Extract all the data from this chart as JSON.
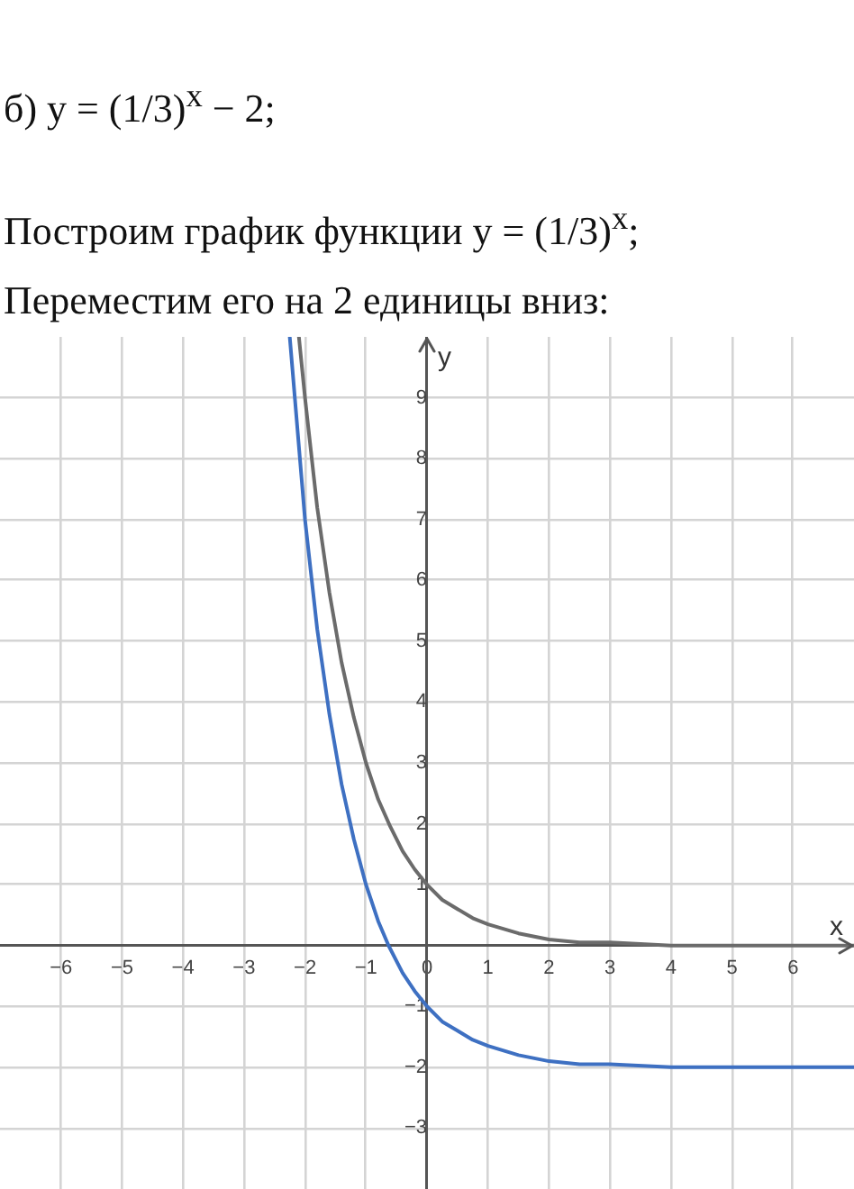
{
  "chart_data": {
    "type": "line",
    "title": "б) y = (1/3)$^{x}$ − 2;",
    "subtitle": "Построим график функции y = (1/3)$^{x}$;",
    "annotations": [
      "Переместим его на 2 единицы вниз:"
    ],
    "xlabel": "x",
    "ylabel": "y",
    "xlim": [
      -7,
      7
    ],
    "ylim": [
      -4,
      10
    ],
    "xticks": [
      {
        "value": -6,
        "label": "−6"
      },
      {
        "value": -5,
        "label": "−5"
      },
      {
        "value": -4,
        "label": "−4"
      },
      {
        "value": -3,
        "label": "−3"
      },
      {
        "value": -2,
        "label": "−2"
      },
      {
        "value": -1,
        "label": "−1"
      },
      0,
      1,
      2,
      3,
      4,
      5,
      6
    ],
    "yticks": [
      {
        "value": -3,
        "label": "−3"
      },
      {
        "value": -2,
        "label": "−2"
      },
      {
        "value": -1,
        "label": "−1"
      },
      {
        "value": 0,
        "label": null
      },
      1,
      2,
      3,
      4,
      5,
      6,
      7,
      8,
      9
    ],
    "grid": true,
    "series": [
      {
        "color": "#6b6b6b",
        "x": [
          -2.1,
          -2,
          -1.8,
          -1.6,
          -1.4,
          -1.2,
          -1,
          -0.8,
          -0.6,
          -0.4,
          -0.2,
          0,
          0.25,
          0.5,
          0.75,
          1,
          1.5,
          2,
          2.5,
          3,
          4,
          5,
          6,
          7
        ],
        "values": [
          10,
          9,
          7.2,
          5.8,
          4.65,
          3.75,
          3,
          2.4,
          1.95,
          1.55,
          1.25,
          1,
          0.75,
          0.6,
          0.45,
          0.35,
          0.2,
          0.1,
          0.05,
          0.05,
          0,
          0,
          0,
          0
        ]
      },
      {
        "color": "#3e70c2",
        "x": [
          -2.25,
          -2,
          -1.8,
          -1.6,
          -1.4,
          -1.2,
          -1,
          -0.8,
          -0.63,
          -0.4,
          -0.2,
          0,
          0.25,
          0.5,
          0.75,
          1,
          1.5,
          2,
          2.5,
          3,
          4,
          5,
          6,
          7
        ],
        "values": [
          10,
          7,
          5.2,
          3.8,
          2.65,
          1.75,
          1,
          0.4,
          0,
          -0.45,
          -0.75,
          -1,
          -1.25,
          -1.4,
          -1.55,
          -1.65,
          -1.8,
          -1.9,
          -1.95,
          -1.95,
          -2,
          -2,
          -2,
          -2
        ]
      }
    ]
  }
}
